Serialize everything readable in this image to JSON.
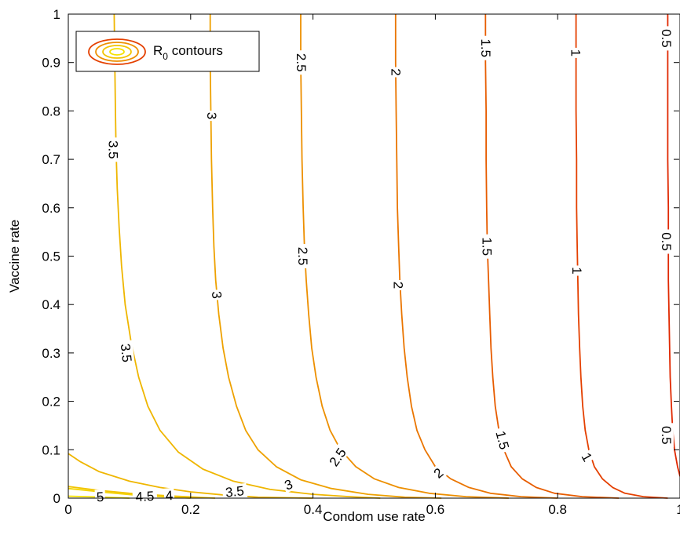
{
  "chart_data": {
    "type": "contour",
    "xlabel": "Condom use rate",
    "ylabel": "Vaccine rate",
    "xlim": [
      0,
      1
    ],
    "ylim": [
      0,
      1
    ],
    "xticks": [
      "0",
      "0.2",
      "0.4",
      "0.6",
      "0.8",
      "1"
    ],
    "yticks": [
      "0",
      "0.1",
      "0.2",
      "0.3",
      "0.4",
      "0.5",
      "0.6",
      "0.7",
      "0.8",
      "0.9",
      "1"
    ],
    "legend": {
      "text": "R",
      "subscript": "0",
      "suffix": " contours",
      "placement": "top-left"
    },
    "series": [
      {
        "name": "5",
        "color": "#f5e200",
        "points": [
          [
            0.0,
            0.004
          ],
          [
            0.06,
            0.002
          ],
          [
            0.1,
            0.0
          ]
        ],
        "labels": [
          {
            "x": 0.052,
            "y": 0.003,
            "text": "5",
            "angle": -3
          }
        ]
      },
      {
        "name": "4.5",
        "color": "#f4d400",
        "points": [
          [
            0.0,
            0.02
          ],
          [
            0.06,
            0.012
          ],
          [
            0.12,
            0.005
          ],
          [
            0.2,
            0.0
          ]
        ],
        "labels": [
          {
            "x": 0.125,
            "y": 0.004,
            "text": "4.5",
            "angle": -3
          }
        ]
      },
      {
        "name": "4",
        "color": "#f2c400",
        "points": [
          [
            0.0,
            0.024
          ],
          [
            0.05,
            0.016
          ],
          [
            0.1,
            0.01
          ],
          [
            0.16,
            0.005
          ],
          [
            0.24,
            0.0
          ]
        ],
        "labels": [
          {
            "x": 0.165,
            "y": 0.006,
            "text": "4",
            "angle": -5
          }
        ]
      },
      {
        "name": "3.5",
        "color": "#efb600",
        "points": [
          [
            0.0,
            0.092
          ],
          [
            0.02,
            0.075
          ],
          [
            0.05,
            0.055
          ],
          [
            0.1,
            0.035
          ],
          [
            0.15,
            0.022
          ],
          [
            0.2,
            0.013
          ],
          [
            0.25,
            0.007
          ],
          [
            0.31,
            0.002
          ],
          [
            0.4,
            0.0
          ]
        ],
        "labels": [
          {
            "x": 0.272,
            "y": 0.014,
            "text": "3.5",
            "angle": -6
          }
        ]
      },
      {
        "name": "3.5",
        "color": "#efb600",
        "points": [
          [
            0.075,
            1.0
          ],
          [
            0.076,
            0.9
          ],
          [
            0.077,
            0.8
          ],
          [
            0.078,
            0.72
          ],
          [
            0.08,
            0.64
          ],
          [
            0.083,
            0.56
          ],
          [
            0.087,
            0.48
          ],
          [
            0.093,
            0.4
          ],
          [
            0.103,
            0.32
          ],
          [
            0.115,
            0.25
          ],
          [
            0.13,
            0.19
          ],
          [
            0.15,
            0.14
          ],
          [
            0.18,
            0.095
          ],
          [
            0.22,
            0.06
          ],
          [
            0.27,
            0.035
          ],
          [
            0.33,
            0.018
          ],
          [
            0.4,
            0.008
          ],
          [
            0.46,
            0.003
          ],
          [
            0.51,
            0.0
          ]
        ],
        "labels": [
          {
            "x": 0.074,
            "y": 0.72,
            "text": "3.5",
            "angle": 90
          },
          {
            "x": 0.095,
            "y": 0.3,
            "text": "3.5",
            "angle": 84
          }
        ]
      },
      {
        "name": "3",
        "color": "#eea100",
        "points": [
          [
            0.232,
            1.0
          ],
          [
            0.232,
            0.9
          ],
          [
            0.233,
            0.8
          ],
          [
            0.234,
            0.7
          ],
          [
            0.236,
            0.6
          ],
          [
            0.238,
            0.52
          ],
          [
            0.241,
            0.45
          ],
          [
            0.246,
            0.38
          ],
          [
            0.253,
            0.31
          ],
          [
            0.262,
            0.25
          ],
          [
            0.275,
            0.19
          ],
          [
            0.29,
            0.14
          ],
          [
            0.31,
            0.1
          ],
          [
            0.34,
            0.065
          ],
          [
            0.38,
            0.038
          ],
          [
            0.43,
            0.02
          ],
          [
            0.49,
            0.008
          ],
          [
            0.55,
            0.002
          ],
          [
            0.61,
            0.0
          ]
        ],
        "labels": [
          {
            "x": 0.235,
            "y": 0.79,
            "text": "3",
            "angle": 90
          },
          {
            "x": 0.243,
            "y": 0.42,
            "text": "3",
            "angle": 85
          },
          {
            "x": 0.36,
            "y": 0.028,
            "text": "3",
            "angle": -22
          }
        ]
      },
      {
        "name": "2.5",
        "color": "#ed8f00",
        "points": [
          [
            0.38,
            1.0
          ],
          [
            0.38,
            0.9
          ],
          [
            0.381,
            0.8
          ],
          [
            0.382,
            0.7
          ],
          [
            0.384,
            0.6
          ],
          [
            0.386,
            0.52
          ],
          [
            0.389,
            0.45
          ],
          [
            0.393,
            0.38
          ],
          [
            0.398,
            0.31
          ],
          [
            0.405,
            0.25
          ],
          [
            0.415,
            0.19
          ],
          [
            0.428,
            0.14
          ],
          [
            0.445,
            0.1
          ],
          [
            0.47,
            0.065
          ],
          [
            0.5,
            0.04
          ],
          [
            0.54,
            0.022
          ],
          [
            0.59,
            0.01
          ],
          [
            0.65,
            0.003
          ],
          [
            0.72,
            0.0
          ]
        ],
        "labels": [
          {
            "x": 0.381,
            "y": 0.9,
            "text": "2.5",
            "angle": 90
          },
          {
            "x": 0.384,
            "y": 0.5,
            "text": "2.5",
            "angle": 90
          },
          {
            "x": 0.44,
            "y": 0.085,
            "text": "2.5",
            "angle": -55
          }
        ]
      },
      {
        "name": "2",
        "color": "#ea7500",
        "points": [
          [
            0.535,
            1.0
          ],
          [
            0.535,
            0.9
          ],
          [
            0.536,
            0.8
          ],
          [
            0.537,
            0.7
          ],
          [
            0.538,
            0.6
          ],
          [
            0.54,
            0.52
          ],
          [
            0.542,
            0.45
          ],
          [
            0.545,
            0.38
          ],
          [
            0.549,
            0.31
          ],
          [
            0.554,
            0.25
          ],
          [
            0.561,
            0.19
          ],
          [
            0.57,
            0.14
          ],
          [
            0.583,
            0.1
          ],
          [
            0.6,
            0.065
          ],
          [
            0.625,
            0.04
          ],
          [
            0.655,
            0.022
          ],
          [
            0.69,
            0.01
          ],
          [
            0.74,
            0.003
          ],
          [
            0.8,
            0.0
          ]
        ],
        "labels": [
          {
            "x": 0.536,
            "y": 0.88,
            "text": "2",
            "angle": 90
          },
          {
            "x": 0.54,
            "y": 0.44,
            "text": "2",
            "angle": 90
          },
          {
            "x": 0.605,
            "y": 0.052,
            "text": "2",
            "angle": -40
          }
        ]
      },
      {
        "name": "1.5",
        "color": "#e75c00",
        "points": [
          [
            0.682,
            1.0
          ],
          [
            0.682,
            0.9
          ],
          [
            0.683,
            0.8
          ],
          [
            0.683,
            0.7
          ],
          [
            0.684,
            0.6
          ],
          [
            0.685,
            0.52
          ],
          [
            0.687,
            0.45
          ],
          [
            0.689,
            0.38
          ],
          [
            0.691,
            0.31
          ],
          [
            0.694,
            0.25
          ],
          [
            0.698,
            0.19
          ],
          [
            0.704,
            0.14
          ],
          [
            0.712,
            0.1
          ],
          [
            0.724,
            0.065
          ],
          [
            0.742,
            0.04
          ],
          [
            0.765,
            0.022
          ],
          [
            0.795,
            0.01
          ],
          [
            0.84,
            0.003
          ],
          [
            0.9,
            0.0
          ]
        ],
        "labels": [
          {
            "x": 0.683,
            "y": 0.93,
            "text": "1.5",
            "angle": 90
          },
          {
            "x": 0.685,
            "y": 0.52,
            "text": "1.5",
            "angle": 90
          },
          {
            "x": 0.71,
            "y": 0.12,
            "text": "1.5",
            "angle": 75
          }
        ]
      },
      {
        "name": "1",
        "color": "#e44000",
        "points": [
          [
            0.83,
            1.0
          ],
          [
            0.83,
            0.9
          ],
          [
            0.83,
            0.8
          ],
          [
            0.831,
            0.7
          ],
          [
            0.831,
            0.6
          ],
          [
            0.832,
            0.52
          ],
          [
            0.833,
            0.45
          ],
          [
            0.834,
            0.38
          ],
          [
            0.836,
            0.31
          ],
          [
            0.838,
            0.25
          ],
          [
            0.841,
            0.19
          ],
          [
            0.845,
            0.14
          ],
          [
            0.851,
            0.1
          ],
          [
            0.86,
            0.065
          ],
          [
            0.873,
            0.04
          ],
          [
            0.89,
            0.022
          ],
          [
            0.91,
            0.01
          ],
          [
            0.94,
            0.003
          ],
          [
            0.98,
            0.0
          ]
        ],
        "labels": [
          {
            "x": 0.83,
            "y": 0.92,
            "text": "1",
            "angle": 90
          },
          {
            "x": 0.832,
            "y": 0.47,
            "text": "1",
            "angle": 90
          },
          {
            "x": 0.848,
            "y": 0.085,
            "text": "1",
            "angle": 60
          }
        ]
      },
      {
        "name": "0.5",
        "color": "#e02800",
        "points": [
          [
            0.98,
            1.0
          ],
          [
            0.98,
            0.9
          ],
          [
            0.98,
            0.8
          ],
          [
            0.98,
            0.7
          ],
          [
            0.981,
            0.6
          ],
          [
            0.981,
            0.52
          ],
          [
            0.981,
            0.45
          ],
          [
            0.982,
            0.38
          ],
          [
            0.983,
            0.31
          ],
          [
            0.984,
            0.25
          ],
          [
            0.986,
            0.19
          ],
          [
            0.988,
            0.14
          ],
          [
            0.991,
            0.1
          ],
          [
            0.996,
            0.065
          ],
          [
            1.0,
            0.045
          ]
        ],
        "labels": [
          {
            "x": 0.978,
            "y": 0.95,
            "text": "0.5",
            "angle": 90
          },
          {
            "x": 0.978,
            "y": 0.53,
            "text": "0.5",
            "angle": 90
          },
          {
            "x": 0.978,
            "y": 0.13,
            "text": "0.5",
            "angle": 90
          }
        ]
      }
    ]
  }
}
